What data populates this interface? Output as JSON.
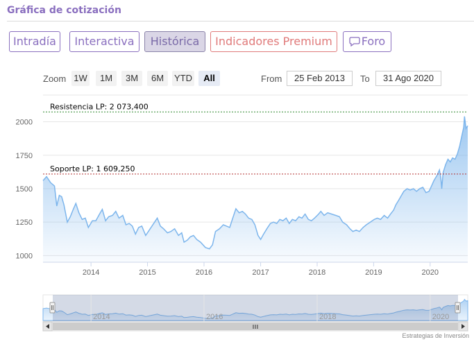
{
  "header": {
    "title": "Gráfica de cotización"
  },
  "tabs": [
    {
      "label": "Intradía",
      "active": false,
      "style": "normal"
    },
    {
      "label": "Interactiva",
      "active": false,
      "style": "normal"
    },
    {
      "label": "Histórica",
      "active": true,
      "style": "normal"
    },
    {
      "label": "Indicadores Premium",
      "active": false,
      "style": "premium"
    },
    {
      "label": "Foro",
      "active": false,
      "style": "normal",
      "icon": "speech-bubble-icon"
    }
  ],
  "range_selector": {
    "zoom_label": "Zoom",
    "buttons": [
      "1W",
      "1M",
      "3M",
      "6M",
      "YTD",
      "All"
    ],
    "active": "All",
    "from_label": "From",
    "from_value": "25 Feb 2013",
    "to_label": "To",
    "to_value": "31 Ago 2020"
  },
  "colors": {
    "line": "#7cb5ec",
    "area_top": "#7cb5ec",
    "resistance_line": "#2f8a2f",
    "support_line": "#b33030",
    "accent": "#8a6fbf"
  },
  "credit": "Estrategias de Inversión",
  "chart_data": {
    "type": "area",
    "title": "",
    "xlabel": "",
    "ylabel": "",
    "x_range": [
      "2013-02-25",
      "2020-08-31"
    ],
    "ylim": [
      950,
      2200
    ],
    "y_ticks": [
      1000,
      1250,
      1500,
      1750,
      2000
    ],
    "x_ticks": [
      "2014",
      "2015",
      "2016",
      "2017",
      "2018",
      "2019",
      "2020"
    ],
    "grid": true,
    "series": [
      {
        "name": "",
        "points": [
          [
            "2013-02-25",
            1560
          ],
          [
            "2013-03-20",
            1590
          ],
          [
            "2013-04-15",
            1545
          ],
          [
            "2013-05-10",
            1520
          ],
          [
            "2013-05-25",
            1370
          ],
          [
            "2013-06-10",
            1450
          ],
          [
            "2013-06-25",
            1440
          ],
          [
            "2013-07-10",
            1380
          ],
          [
            "2013-08-01",
            1250
          ],
          [
            "2013-08-20",
            1290
          ],
          [
            "2013-09-10",
            1350
          ],
          [
            "2013-09-25",
            1390
          ],
          [
            "2013-10-15",
            1320
          ],
          [
            "2013-11-05",
            1270
          ],
          [
            "2013-11-25",
            1280
          ],
          [
            "2013-12-15",
            1210
          ],
          [
            "2014-01-10",
            1260
          ],
          [
            "2014-02-01",
            1260
          ],
          [
            "2014-02-25",
            1310
          ],
          [
            "2014-03-15",
            1345
          ],
          [
            "2014-04-05",
            1260
          ],
          [
            "2014-04-25",
            1290
          ],
          [
            "2014-05-20",
            1300
          ],
          [
            "2014-06-10",
            1330
          ],
          [
            "2014-07-01",
            1280
          ],
          [
            "2014-07-25",
            1300
          ],
          [
            "2014-08-15",
            1230
          ],
          [
            "2014-09-05",
            1240
          ],
          [
            "2014-09-25",
            1220
          ],
          [
            "2014-10-15",
            1160
          ],
          [
            "2014-11-05",
            1210
          ],
          [
            "2014-11-25",
            1220
          ],
          [
            "2014-12-20",
            1150
          ],
          [
            "2015-01-15",
            1195
          ],
          [
            "2015-02-10",
            1240
          ],
          [
            "2015-03-05",
            1280
          ],
          [
            "2015-03-25",
            1220
          ],
          [
            "2015-04-15",
            1200
          ],
          [
            "2015-05-10",
            1170
          ],
          [
            "2015-06-01",
            1180
          ],
          [
            "2015-06-25",
            1200
          ],
          [
            "2015-07-20",
            1150
          ],
          [
            "2015-08-10",
            1170
          ],
          [
            "2015-08-25",
            1100
          ],
          [
            "2015-09-15",
            1115
          ],
          [
            "2015-10-05",
            1140
          ],
          [
            "2015-10-25",
            1150
          ],
          [
            "2015-11-15",
            1120
          ],
          [
            "2015-12-10",
            1100
          ],
          [
            "2016-01-10",
            1060
          ],
          [
            "2016-02-05",
            1050
          ],
          [
            "2016-02-25",
            1080
          ],
          [
            "2016-03-15",
            1180
          ],
          [
            "2016-04-10",
            1200
          ],
          [
            "2016-05-05",
            1230
          ],
          [
            "2016-05-25",
            1220
          ],
          [
            "2016-06-15",
            1210
          ],
          [
            "2016-07-05",
            1280
          ],
          [
            "2016-07-25",
            1350
          ],
          [
            "2016-08-15",
            1320
          ],
          [
            "2016-09-05",
            1330
          ],
          [
            "2016-09-25",
            1310
          ],
          [
            "2016-10-15",
            1280
          ],
          [
            "2016-11-05",
            1270
          ],
          [
            "2016-11-25",
            1230
          ],
          [
            "2016-12-15",
            1150
          ],
          [
            "2017-01-01",
            1120
          ],
          [
            "2017-01-20",
            1160
          ],
          [
            "2017-02-10",
            1200
          ],
          [
            "2017-03-05",
            1240
          ],
          [
            "2017-03-25",
            1250
          ],
          [
            "2017-04-15",
            1240
          ],
          [
            "2017-05-05",
            1270
          ],
          [
            "2017-05-25",
            1260
          ],
          [
            "2017-06-15",
            1280
          ],
          [
            "2017-07-05",
            1240
          ],
          [
            "2017-07-25",
            1270
          ],
          [
            "2017-08-15",
            1260
          ],
          [
            "2017-09-05",
            1290
          ],
          [
            "2017-09-25",
            1280
          ],
          [
            "2017-10-15",
            1310
          ],
          [
            "2017-11-05",
            1270
          ],
          [
            "2017-11-25",
            1260
          ],
          [
            "2017-12-15",
            1280
          ],
          [
            "2018-01-10",
            1310
          ],
          [
            "2018-01-25",
            1330
          ],
          [
            "2018-02-15",
            1300
          ],
          [
            "2018-03-10",
            1320
          ],
          [
            "2018-04-05",
            1310
          ],
          [
            "2018-05-01",
            1300
          ],
          [
            "2018-05-25",
            1290
          ],
          [
            "2018-06-15",
            1250
          ],
          [
            "2018-07-10",
            1230
          ],
          [
            "2018-08-01",
            1200
          ],
          [
            "2018-08-20",
            1180
          ],
          [
            "2018-09-10",
            1190
          ],
          [
            "2018-10-01",
            1180
          ],
          [
            "2018-10-25",
            1210
          ],
          [
            "2018-11-15",
            1230
          ],
          [
            "2018-12-10",
            1250
          ],
          [
            "2019-01-05",
            1270
          ],
          [
            "2019-01-25",
            1280
          ],
          [
            "2019-02-15",
            1270
          ],
          [
            "2019-03-10",
            1300
          ],
          [
            "2019-04-01",
            1280
          ],
          [
            "2019-04-20",
            1310
          ],
          [
            "2019-05-10",
            1340
          ],
          [
            "2019-05-25",
            1380
          ],
          [
            "2019-06-10",
            1410
          ],
          [
            "2019-06-25",
            1440
          ],
          [
            "2019-07-15",
            1480
          ],
          [
            "2019-08-05",
            1500
          ],
          [
            "2019-08-25",
            1490
          ],
          [
            "2019-09-15",
            1500
          ],
          [
            "2019-10-05",
            1480
          ],
          [
            "2019-10-25",
            1500
          ],
          [
            "2019-11-15",
            1510
          ],
          [
            "2019-12-05",
            1470
          ],
          [
            "2019-12-25",
            1480
          ],
          [
            "2020-01-10",
            1520
          ],
          [
            "2020-01-25",
            1560
          ],
          [
            "2020-02-15",
            1600
          ],
          [
            "2020-03-01",
            1640
          ],
          [
            "2020-03-10",
            1580
          ],
          [
            "2020-03-16",
            1500
          ],
          [
            "2020-03-25",
            1620
          ],
          [
            "2020-04-10",
            1680
          ],
          [
            "2020-04-25",
            1720
          ],
          [
            "2020-05-10",
            1700
          ],
          [
            "2020-05-25",
            1730
          ],
          [
            "2020-06-10",
            1720
          ],
          [
            "2020-06-25",
            1760
          ],
          [
            "2020-07-10",
            1820
          ],
          [
            "2020-07-25",
            1900
          ],
          [
            "2020-08-05",
            1960
          ],
          [
            "2020-08-10",
            2040
          ],
          [
            "2020-08-20",
            1950
          ],
          [
            "2020-08-31",
            1970
          ]
        ]
      }
    ],
    "annotations": [
      {
        "label": "Resistencia LP: 2 073,400",
        "value": 2073.4,
        "color": "#2f8a2f"
      },
      {
        "label": "Soporte LP: 1 609,250",
        "value": 1609.25,
        "color": "#b33030"
      }
    ],
    "navigator": {
      "x_ticks": [
        "2014",
        "2016",
        "2018",
        "2020"
      ]
    }
  }
}
